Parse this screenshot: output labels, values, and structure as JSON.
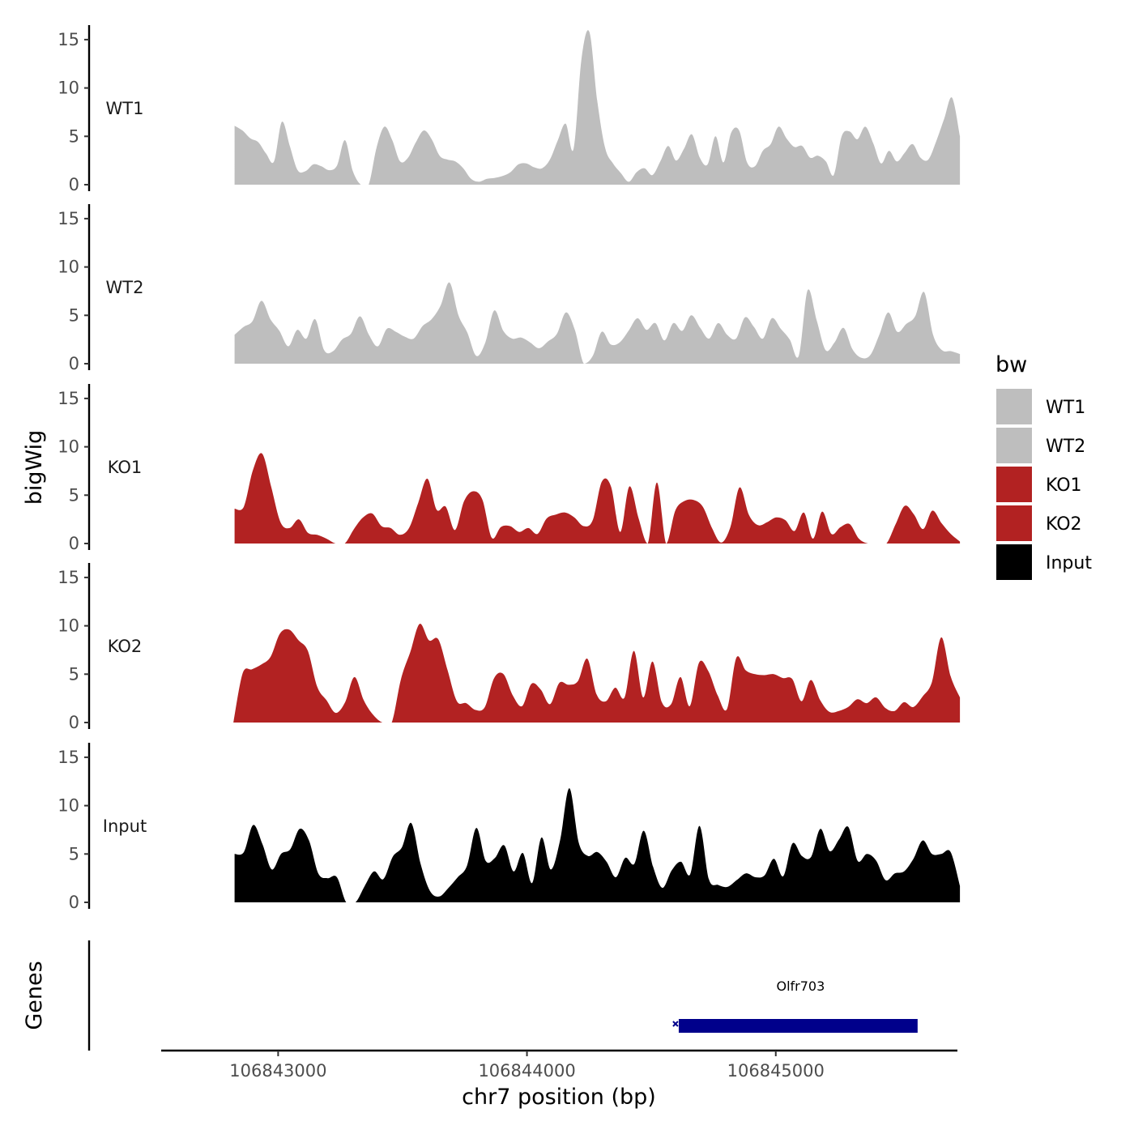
{
  "chart_data": {
    "type": "area",
    "title": "",
    "xlabel": "chr7 position (bp)",
    "ylabel": "bigWig",
    "genes_label": "Genes",
    "xlim": [
      106842530,
      106845730
    ],
    "ylim": [
      0,
      16.5
    ],
    "x_ticks": [
      106843000,
      106844000,
      106845000
    ],
    "x_tick_labels": [
      "106843000",
      "106844000",
      "106845000"
    ],
    "y_ticks": [
      0,
      5,
      10,
      15
    ],
    "y_tick_labels": [
      "0",
      "5",
      "10",
      "15"
    ],
    "legend": {
      "title": "bw",
      "entries": [
        {
          "label": "WT1",
          "color": "#bebebe"
        },
        {
          "label": "WT2",
          "color": "#bebebe"
        },
        {
          "label": "KO1",
          "color": "#b22222"
        },
        {
          "label": "KO2",
          "color": "#b22222"
        },
        {
          "label": "Input",
          "color": "#000000"
        }
      ]
    },
    "series": [
      {
        "name": "WT1",
        "color": "#bebebe",
        "x_start": 106842825,
        "x_end": 106845740,
        "values": [
          6.1,
          5.6,
          4.8,
          4.4,
          3.2,
          2.4,
          6.5,
          4.0,
          1.5,
          1.4,
          2.1,
          1.9,
          1.5,
          2.0,
          4.6,
          1.4,
          0.0,
          0.0,
          3.8,
          6.0,
          4.6,
          2.4,
          2.8,
          4.4,
          5.6,
          4.7,
          3.0,
          2.6,
          2.4,
          1.7,
          0.6,
          0.3,
          0.6,
          0.7,
          0.9,
          1.3,
          2.1,
          2.2,
          1.8,
          1.7,
          2.6,
          4.6,
          6.3,
          3.7,
          13.0,
          15.8,
          8.7,
          3.8,
          2.2,
          1.2,
          0.3,
          1.3,
          1.7,
          1.0,
          2.4,
          4.0,
          2.5,
          3.7,
          5.2,
          2.8,
          2.1,
          5.0,
          2.3,
          5.4,
          5.6,
          2.3,
          1.9,
          3.5,
          4.2,
          6.0,
          4.8,
          3.9,
          4.0,
          2.8,
          3.0,
          2.4,
          1.0,
          5.0,
          5.5,
          4.7,
          6.0,
          4.3,
          2.2,
          3.5,
          2.4,
          3.3,
          4.2,
          2.8,
          2.6,
          4.5,
          6.8,
          9.0,
          5.0
        ]
      },
      {
        "name": "WT2",
        "color": "#bebebe",
        "x_start": 106842825,
        "x_end": 106845740,
        "values": [
          3.0,
          3.8,
          4.4,
          6.5,
          4.6,
          3.4,
          1.8,
          3.5,
          2.6,
          4.6,
          1.4,
          1.3,
          2.5,
          3.1,
          4.9,
          3.0,
          1.8,
          3.6,
          3.3,
          2.8,
          2.6,
          3.9,
          4.6,
          6.0,
          8.4,
          5.0,
          3.2,
          0.8,
          2.2,
          5.5,
          3.4,
          2.6,
          2.7,
          2.2,
          1.6,
          2.3,
          3.1,
          5.3,
          3.5,
          0.0,
          0.8,
          3.3,
          2.0,
          2.2,
          3.4,
          4.7,
          3.5,
          4.2,
          2.4,
          4.2,
          3.4,
          5.0,
          3.7,
          2.6,
          4.2,
          3.0,
          2.6,
          4.8,
          3.8,
          2.6,
          4.7,
          3.6,
          2.5,
          0.8,
          7.6,
          4.5,
          1.4,
          2.2,
          3.7,
          1.5,
          0.6,
          0.9,
          3.0,
          5.3,
          3.3,
          4.1,
          4.9,
          7.4,
          3.0,
          1.4,
          1.3,
          1.0
        ]
      },
      {
        "name": "KO1",
        "color": "#b22222",
        "x_start": 106842825,
        "x_end": 106845740,
        "values": [
          3.6,
          3.8,
          7.6,
          9.3,
          5.8,
          2.2,
          1.6,
          2.5,
          1.1,
          0.9,
          0.5,
          0.0,
          0.0,
          1.5,
          2.7,
          3.1,
          1.8,
          1.6,
          0.9,
          1.6,
          4.2,
          6.7,
          3.5,
          3.8,
          1.4,
          4.4,
          5.4,
          4.5,
          0.6,
          1.7,
          1.8,
          1.2,
          1.6,
          1.0,
          2.6,
          3.0,
          3.2,
          2.7,
          1.8,
          2.4,
          6.4,
          5.9,
          1.2,
          5.9,
          2.6,
          0.0,
          6.3,
          0.0,
          3.4,
          4.4,
          4.5,
          3.8,
          1.6,
          0.1,
          1.7,
          5.8,
          3.0,
          1.9,
          2.2,
          2.7,
          2.4,
          1.3,
          3.2,
          0.5,
          3.3,
          1.0,
          1.7,
          2.0,
          0.5,
          0.0,
          0.0,
          0.0,
          2.0,
          3.9,
          3.0,
          1.5,
          3.4,
          2.1,
          1.0,
          0.2
        ]
      },
      {
        "name": "KO2",
        "color": "#b22222",
        "x_start": 106842820,
        "x_end": 106845740,
        "values": [
          0.0,
          5.1,
          5.5,
          6.0,
          6.8,
          9.2,
          9.6,
          8.5,
          7.4,
          3.7,
          2.3,
          1.0,
          2.1,
          4.7,
          2.3,
          0.8,
          0.0,
          0.0,
          4.5,
          7.3,
          10.2,
          8.5,
          8.6,
          5.4,
          2.2,
          2.0,
          1.3,
          1.6,
          4.6,
          5.0,
          2.8,
          1.7,
          4.0,
          3.4,
          1.9,
          4.1,
          3.9,
          4.3,
          6.6,
          2.9,
          2.2,
          3.6,
          2.6,
          7.4,
          2.6,
          6.3,
          2.1,
          1.9,
          4.7,
          1.7,
          6.2,
          5.3,
          2.8,
          1.4,
          6.7,
          5.4,
          5.0,
          4.9,
          5.0,
          4.6,
          4.5,
          2.2,
          4.4,
          2.3,
          1.1,
          1.2,
          1.6,
          2.4,
          2.0,
          2.6,
          1.5,
          1.2,
          2.1,
          1.6,
          2.7,
          4.2,
          8.8,
          4.8,
          2.6
        ]
      },
      {
        "name": "Input",
        "color": "#000000",
        "x_start": 106842825,
        "x_end": 106845740,
        "values": [
          5.0,
          5.2,
          8.0,
          6.0,
          3.4,
          5.0,
          5.5,
          7.6,
          6.4,
          3.0,
          2.5,
          2.6,
          0.0,
          0.0,
          1.7,
          3.2,
          2.4,
          4.7,
          5.7,
          8.2,
          4.0,
          1.2,
          0.6,
          1.5,
          2.6,
          3.8,
          7.7,
          4.3,
          4.6,
          5.9,
          3.2,
          5.1,
          2.0,
          6.7,
          3.4,
          6.4,
          11.8,
          6.2,
          4.8,
          5.2,
          4.2,
          2.6,
          4.6,
          4.0,
          7.4,
          3.7,
          1.5,
          3.3,
          4.2,
          2.9,
          7.9,
          2.4,
          1.8,
          1.6,
          2.3,
          3.0,
          2.6,
          2.8,
          4.5,
          2.7,
          6.1,
          4.8,
          4.7,
          7.6,
          5.3,
          6.5,
          7.8,
          4.3,
          5.0,
          4.3,
          2.3,
          3.0,
          3.2,
          4.5,
          6.4,
          5.0,
          5.0,
          5.2,
          1.7
        ]
      }
    ],
    "genes": [
      {
        "name": "Olfr703",
        "start": 106844610,
        "end": 106845570,
        "color": "#00008b"
      }
    ]
  }
}
